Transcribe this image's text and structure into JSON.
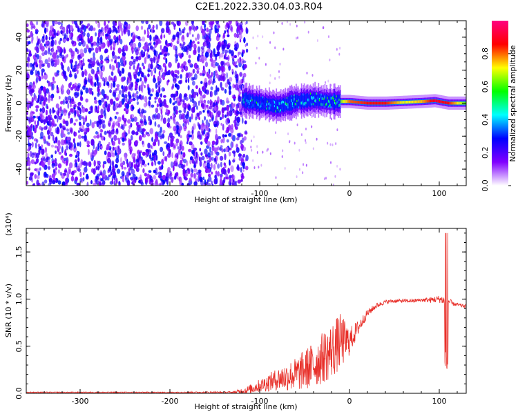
{
  "title": "C2E1.2022.330.04.03.R04",
  "chart_data": [
    {
      "type": "heatmap",
      "title": "C2E1.2022.330.04.03.R04",
      "xlabel": "Height of straight line (km)",
      "ylabel": "Frequency (Hz)",
      "xlim": [
        -360,
        130
      ],
      "ylim": [
        -50,
        50
      ],
      "x_ticks": [
        -300,
        -200,
        -100,
        0,
        100
      ],
      "y_ticks": [
        -40,
        -20,
        0,
        20,
        40
      ],
      "noise_region_x": [
        -360,
        -120
      ],
      "signal_trace": [
        {
          "x": -120,
          "y": 2,
          "amp": 0.35
        },
        {
          "x": -100,
          "y": 0,
          "amp": 0.35
        },
        {
          "x": -80,
          "y": -2,
          "amp": 0.45
        },
        {
          "x": -60,
          "y": 1,
          "amp": 0.45
        },
        {
          "x": -40,
          "y": 2,
          "amp": 0.45
        },
        {
          "x": -20,
          "y": 1,
          "amp": 0.5
        },
        {
          "x": 0,
          "y": 1,
          "amp": 0.8
        },
        {
          "x": 20,
          "y": 0,
          "amp": 0.85
        },
        {
          "x": 40,
          "y": 0,
          "amp": 0.85
        },
        {
          "x": 60,
          "y": 0.5,
          "amp": 0.7
        },
        {
          "x": 80,
          "y": 1,
          "amp": 0.75
        },
        {
          "x": 95,
          "y": 1.5,
          "amp": 0.9
        },
        {
          "x": 110,
          "y": 0,
          "amp": 0.85
        },
        {
          "x": 130,
          "y": 0,
          "amp": 0.6
        }
      ],
      "colorbar": {
        "label": "Normalized spectral amplitude",
        "range": [
          0,
          1
        ],
        "ticks": [
          "0.0",
          "0.2",
          "0.4",
          "0.6",
          "0.8"
        ],
        "colors": [
          "#ffffff",
          "#8000ff",
          "#0000ff",
          "#00ffff",
          "#00ff00",
          "#ffff00",
          "#ff0000",
          "#ff0080"
        ]
      }
    },
    {
      "type": "line",
      "xlabel": "Height of straight line (km)",
      "ylabel": "SNR (10 * v/v)",
      "y_multiplier": "(x10⁴)",
      "xlim": [
        -360,
        130
      ],
      "ylim": [
        0,
        1.75
      ],
      "x_ticks": [
        -300,
        -200,
        -100,
        0,
        100
      ],
      "y_ticks": [
        "0.0",
        "0.5",
        "1.0",
        "1.5"
      ],
      "color": "#e8302a",
      "series": [
        {
          "x": [
            -360,
            -300,
            -200,
            -130,
            -115,
            -100,
            -80,
            -60,
            -40,
            -20,
            -10,
            0,
            10,
            20,
            30,
            40,
            50,
            60,
            70,
            80,
            90,
            100,
            105,
            108,
            110,
            115,
            120,
            130
          ],
          "y": [
            0.01,
            0.01,
            0.01,
            0.01,
            0.03,
            0.08,
            0.15,
            0.2,
            0.3,
            0.45,
            0.55,
            0.55,
            0.7,
            0.85,
            0.93,
            0.97,
            0.98,
            0.98,
            0.98,
            0.99,
            0.99,
            1.0,
            0.99,
            0.7,
            0.98,
            0.95,
            0.94,
            0.92
          ],
          "spread": [
            0.005,
            0.005,
            0.005,
            0.01,
            0.04,
            0.07,
            0.12,
            0.18,
            0.25,
            0.3,
            0.3,
            0.15,
            0.08,
            0.04,
            0.03,
            0.02,
            0.02,
            0.02,
            0.02,
            0.02,
            0.03,
            0.04,
            0.05,
            0.4,
            0.05,
            0.02,
            0.02,
            0.02
          ]
        }
      ]
    }
  ]
}
